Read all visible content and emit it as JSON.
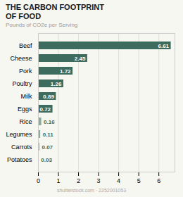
{
  "chart_data": {
    "type": "bar",
    "orientation": "horizontal",
    "title": "THE CARBON FOOTPRINT\nOF FOOD",
    "subtitle": "Pounds of CO2e per Serving",
    "annotations": [
      "shutterstock.com · 2252001053"
    ],
    "categories": [
      "Beef",
      "Cheese",
      "Pork",
      "Poultry",
      "Milk",
      "Eggs",
      "Rice",
      "Legumes",
      "Carrots",
      "Potatoes"
    ],
    "values": [
      6.61,
      2.45,
      1.72,
      1.26,
      0.89,
      0.72,
      0.16,
      0.11,
      0.07,
      0.03
    ],
    "colors": [
      "#3d6b5e",
      "#3d6b5e",
      "#3d6b5e",
      "#3d6b5e",
      "#3d6b5e",
      "#3d6b5e",
      "#8aab9e",
      "#8aab9e",
      "#8aab9e",
      "#8aab9e"
    ],
    "xlim": [
      0,
      6.8
    ],
    "xticks": [
      0,
      1,
      2,
      3,
      4,
      5,
      6
    ],
    "grid": true,
    "data_labels": true
  }
}
